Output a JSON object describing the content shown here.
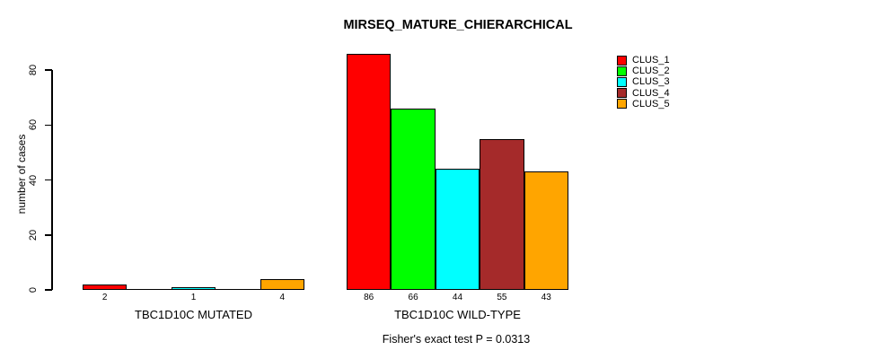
{
  "chart_data": {
    "type": "bar",
    "title": "MIRSEQ_MATURE_CHIERARCHICAL",
    "ylabel": "number of cases",
    "xlabel": "",
    "ylim": [
      0,
      80
    ],
    "yticks": [
      0,
      20,
      40,
      60,
      80
    ],
    "grid": false,
    "legend_position": "top-right",
    "categories": [
      "TBC1D10C MUTATED",
      "TBC1D10C WILD-TYPE"
    ],
    "series": [
      {
        "name": "CLUS_1",
        "color": "#FF0000",
        "values": [
          2,
          86
        ]
      },
      {
        "name": "CLUS_2",
        "color": "#00FF00",
        "values": [
          0,
          66
        ]
      },
      {
        "name": "CLUS_3",
        "color": "#00FFFF",
        "values": [
          1,
          44
        ]
      },
      {
        "name": "CLUS_4",
        "color": "#A52A2A",
        "values": [
          0,
          55
        ]
      },
      {
        "name": "CLUS_5",
        "color": "#FFA500",
        "values": [
          4,
          43
        ]
      }
    ],
    "bar_value_labels_shown": [
      [
        "2",
        "",
        "1",
        "",
        "4"
      ],
      [
        "86",
        "66",
        "44",
        "55",
        "43"
      ]
    ],
    "annotation": "Fisher's exact test P = 0.0313",
    "colors": {
      "background": "#FFFFFF",
      "axis": "#000000",
      "text": "#000000"
    }
  }
}
